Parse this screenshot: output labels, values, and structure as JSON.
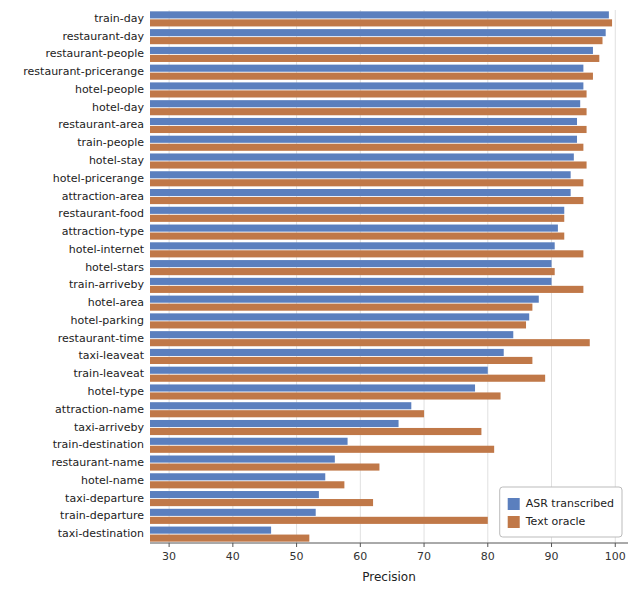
{
  "chart_data": {
    "type": "bar",
    "orientation": "horizontal",
    "x_label": "Precision",
    "categories": [
      "train-day",
      "restaurant-day",
      "restaurant-people",
      "restaurant-pricerange",
      "hotel-people",
      "hotel-day",
      "restaurant-area",
      "train-people",
      "hotel-stay",
      "hotel-pricerange",
      "attraction-area",
      "restaurant-food",
      "attraction-type",
      "hotel-internet",
      "hotel-stars",
      "train-arriveby",
      "hotel-area",
      "hotel-parking",
      "restaurant-time",
      "taxi-leaveat",
      "train-leaveat",
      "hotel-type",
      "attraction-name",
      "taxi-arriveby",
      "train-destination",
      "restaurant-name",
      "hotel-name",
      "taxi-departure",
      "train-departure",
      "taxi-destination"
    ],
    "series": [
      {
        "name": "ASR transcribed",
        "color": "#5b7fbe",
        "values": [
          99.0,
          98.5,
          96.5,
          95.0,
          95.0,
          94.5,
          94.0,
          94.0,
          93.5,
          93.0,
          93.0,
          92.0,
          91.0,
          90.5,
          90.0,
          90.0,
          88.0,
          86.5,
          84.0,
          82.5,
          80.0,
          78.0,
          68.0,
          66.0,
          58.0,
          56.0,
          54.5,
          53.5,
          53.0,
          46.0
        ]
      },
      {
        "name": "Text oracle",
        "color": "#c07848",
        "values": [
          99.5,
          98.0,
          97.5,
          96.5,
          95.5,
          95.5,
          95.5,
          95.0,
          95.5,
          95.0,
          95.0,
          92.0,
          92.0,
          95.0,
          90.5,
          95.0,
          87.0,
          86.0,
          96.0,
          87.0,
          89.0,
          82.0,
          70.0,
          79.0,
          81.0,
          63.0,
          57.5,
          62.0,
          80.0,
          52.0
        ]
      }
    ],
    "xlim": [
      27,
      102
    ],
    "xticks": [
      30,
      40,
      50,
      60,
      70,
      80,
      90,
      100
    ],
    "grid": true,
    "legend": "lower right"
  }
}
